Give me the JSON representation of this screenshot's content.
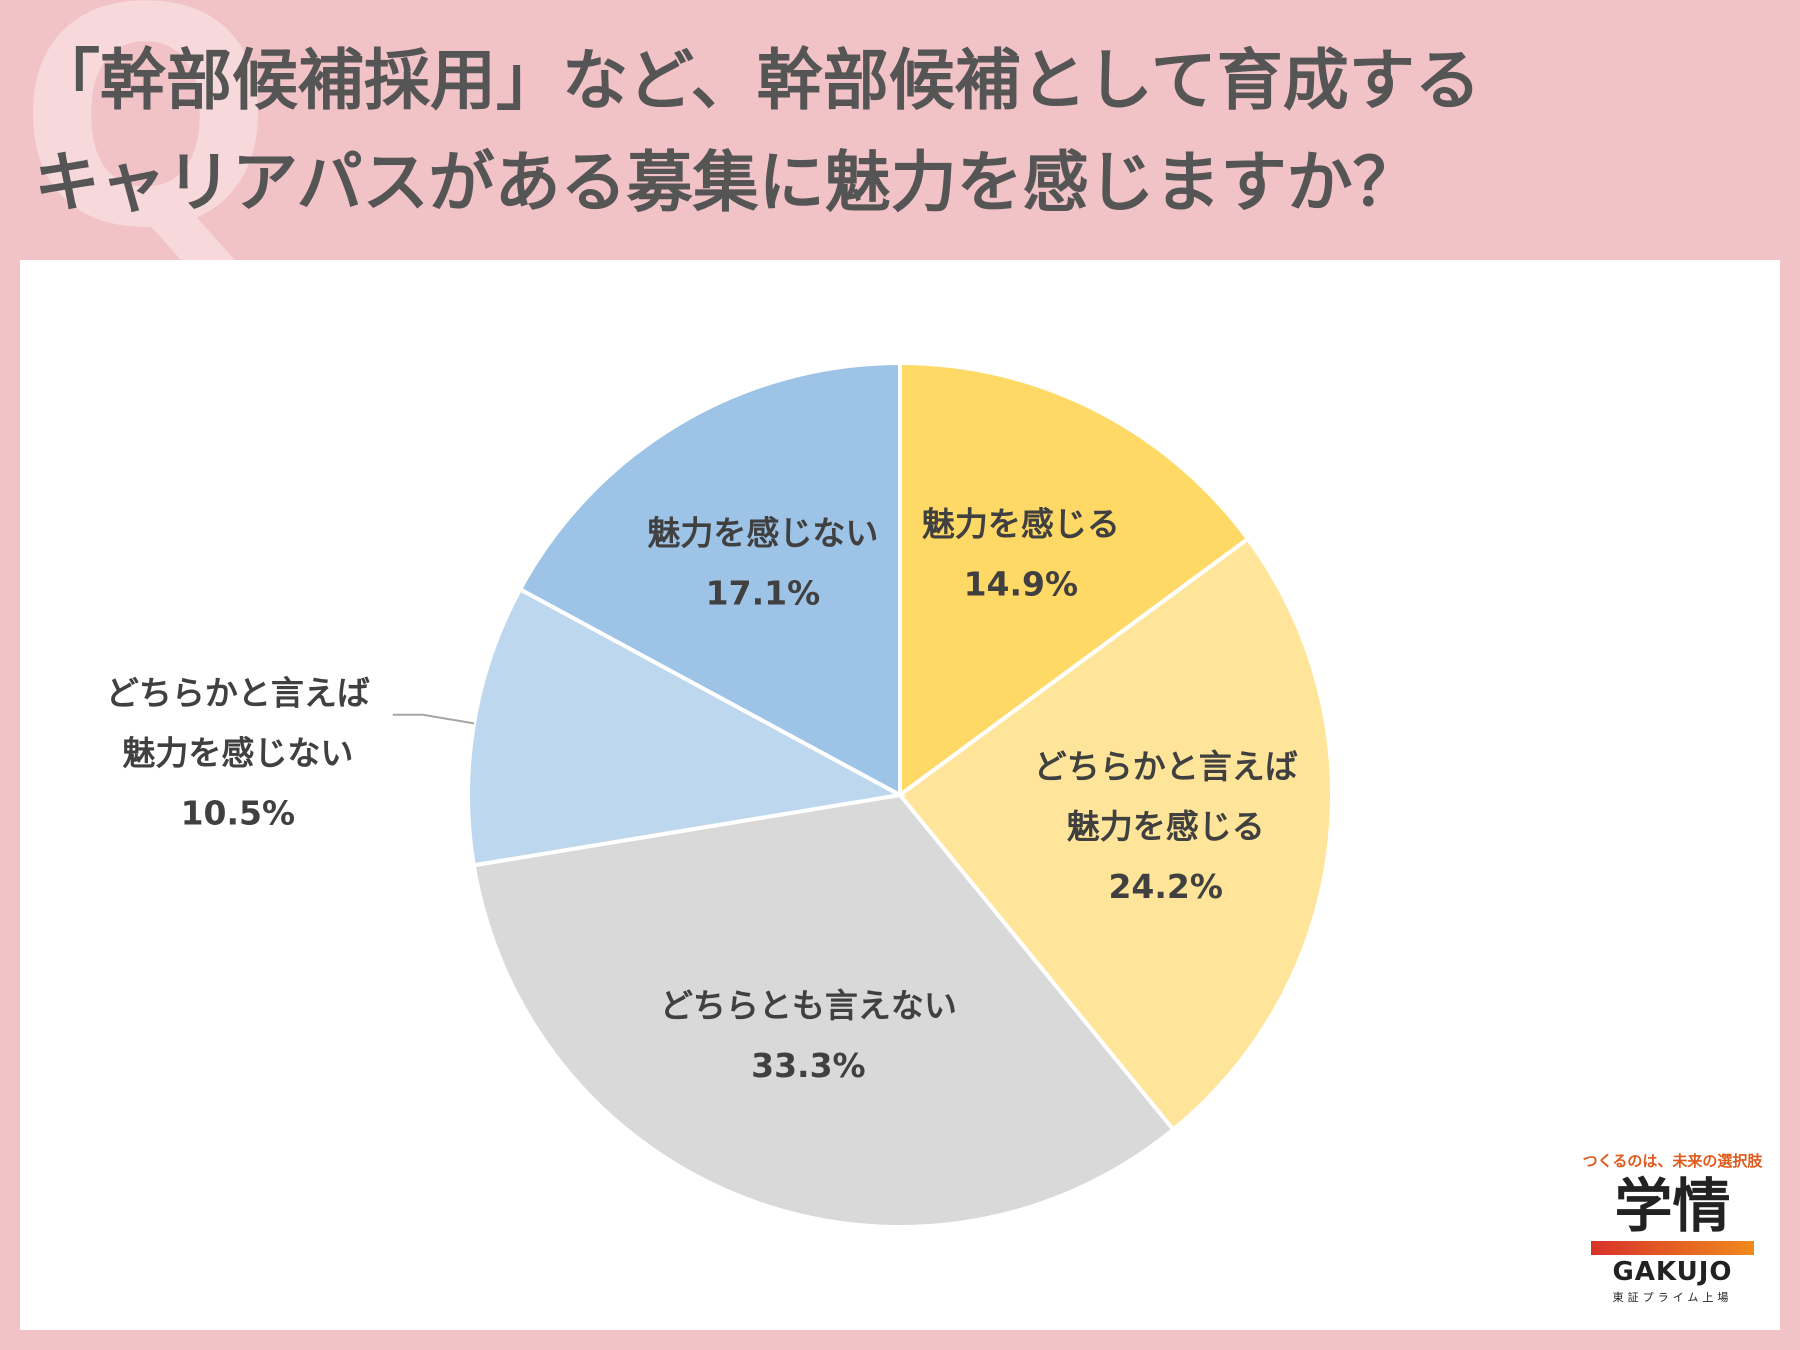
{
  "title": {
    "line1": "「幹部候補採用」など、幹部候補として育成する",
    "line2": "キャリアパスがある募集に魅力を感じますか？"
  },
  "decor": {
    "q_letter": "Q"
  },
  "chart_data": {
    "type": "pie",
    "slices": [
      {
        "label_lines": [
          "魅力を感じる"
        ],
        "value": 14.9,
        "value_label": "14.9%",
        "color": "#ffd966"
      },
      {
        "label_lines": [
          "どちらかと言えば",
          "魅力を感じる"
        ],
        "value": 24.2,
        "value_label": "24.2%",
        "color": "#ffe599"
      },
      {
        "label_lines": [
          "どちらとも言えない"
        ],
        "value": 33.3,
        "value_label": "33.3%",
        "color": "#d9d9d9"
      },
      {
        "label_lines": [
          "どちらかと言えば",
          "魅力を感じない"
        ],
        "value": 10.5,
        "value_label": "10.5%",
        "color": "#bdd7ee"
      },
      {
        "label_lines": [
          "魅力を感じない"
        ],
        "value": 17.1,
        "value_label": "17.1%",
        "color": "#9dc3e6"
      }
    ]
  },
  "logo": {
    "tagline": "つくるのは、未来の選択肢",
    "kanji": "学情",
    "roman": "GAKUJO",
    "listing": "東証プライム上場"
  }
}
